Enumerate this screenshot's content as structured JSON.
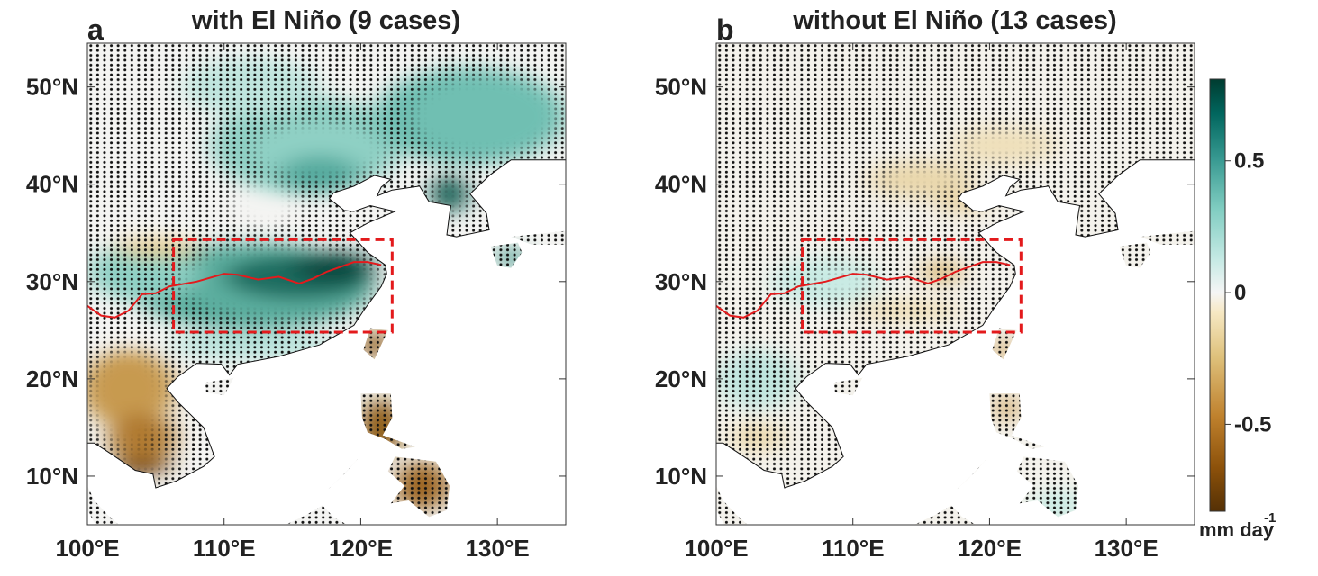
{
  "panels": [
    {
      "label": "a",
      "title": "with El Niño (9 cases)"
    },
    {
      "label": "b",
      "title": "without El Niño (13 cases)"
    }
  ],
  "axes": {
    "xlim": [
      100,
      135
    ],
    "ylim": [
      5,
      54.5
    ],
    "xticks": [
      {
        "value": 100,
        "label": "100°E"
      },
      {
        "value": 110,
        "label": "110°E"
      },
      {
        "value": 120,
        "label": "120°E"
      },
      {
        "value": 130,
        "label": "130°E"
      }
    ],
    "yticks": [
      {
        "value": 10,
        "label": "10°N"
      },
      {
        "value": 20,
        "label": "20°N"
      },
      {
        "value": 30,
        "label": "30°N"
      },
      {
        "value": 40,
        "label": "40°N"
      },
      {
        "value": 50,
        "label": "50°N"
      }
    ]
  },
  "colorbar": {
    "clim": [
      -0.83,
      0.81
    ],
    "ticks": [
      -0.5,
      0,
      0.5
    ],
    "unit": "mm day",
    "unit_exponent": "-1"
  }
}
